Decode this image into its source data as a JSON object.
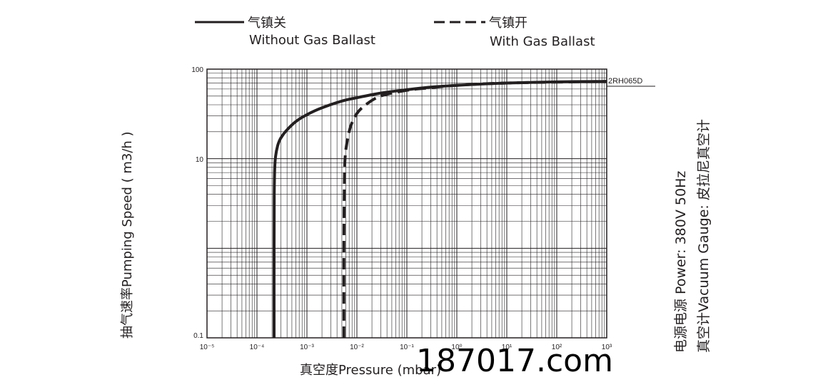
{
  "legend": [
    {
      "label_cn": "气镇关",
      "label_en": "Without Gas Ballast",
      "style": "solid"
    },
    {
      "label_cn": "气镇开",
      "label_en": "With Gas Ballast",
      "style": "dashed"
    }
  ],
  "chart_data": {
    "type": "line",
    "xscale": "log",
    "yscale": "log",
    "xlim": [
      1e-05,
      1000
    ],
    "ylim": [
      0.1,
      100
    ],
    "x_tick_labels": [
      "10⁻⁵",
      "10⁻⁴",
      "10⁻³",
      "10⁻²",
      "10⁻¹",
      "10⁰",
      "10¹",
      "10²",
      "10³"
    ],
    "y_tick_labels": [
      "0.1",
      "10",
      "100"
    ],
    "xlabel": "真空度Pressure (mbar)",
    "ylabel": "抽气速率Pumping Speed ( m3/h )",
    "grid": true,
    "curve_label": "2RH065D",
    "series": [
      {
        "style": "solid",
        "color": "#231f20",
        "x": [
          0.00022,
          0.00022,
          0.000222,
          0.000226,
          0.000235,
          0.00026,
          0.0003,
          0.0004,
          0.0006,
          0.001,
          0.002,
          0.005,
          0.01,
          0.03,
          0.1,
          0.3,
          1,
          3,
          10,
          100,
          1000
        ],
        "y": [
          0.1,
          1,
          4,
          7.5,
          10.5,
          14,
          17,
          21,
          26,
          31,
          37,
          44,
          48,
          54,
          59,
          63,
          66,
          68,
          70,
          72,
          73
        ]
      },
      {
        "style": "dashed",
        "color": "#231f20",
        "x": [
          0.0055,
          0.0055,
          0.0056,
          0.0058,
          0.0063,
          0.0075,
          0.01,
          0.015,
          0.03,
          0.1,
          0.3,
          1,
          10,
          1000
        ],
        "y": [
          0.1,
          1,
          5,
          10,
          15,
          23,
          32,
          40,
          50,
          58,
          62,
          66,
          70,
          73
        ]
      }
    ]
  },
  "side_text": {
    "line1": "电源电源 Power: 380V 50Hz",
    "line2": "真空计Vacuum Gauge: 皮拉尼真空计"
  },
  "watermark": "187017.com",
  "colors": {
    "ink": "#231f20",
    "grid": "#231f20",
    "background": "#ffffff"
  }
}
